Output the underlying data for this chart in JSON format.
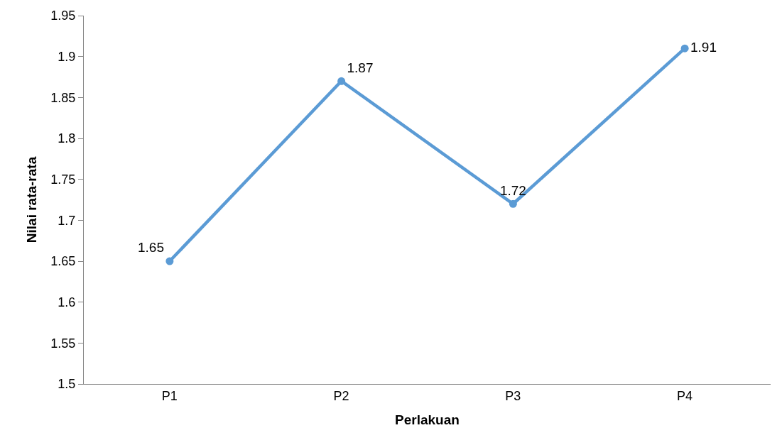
{
  "chart_data": {
    "type": "line",
    "xlabel": "Perlakuan",
    "ylabel": "Nilai rata-rata",
    "categories": [
      "P1",
      "P2",
      "P3",
      "P4"
    ],
    "series": [
      {
        "color": "#5b9bd5",
        "values": [
          1.65,
          1.87,
          1.72,
          1.91
        ]
      }
    ],
    "ylim": [
      1.5,
      1.95
    ],
    "yticks": [
      1.5,
      1.55,
      1.6,
      1.65,
      1.7,
      1.75,
      1.8,
      1.85,
      1.9,
      1.95
    ],
    "marker": "circle",
    "line_style": "solid",
    "data_labels": true
  }
}
